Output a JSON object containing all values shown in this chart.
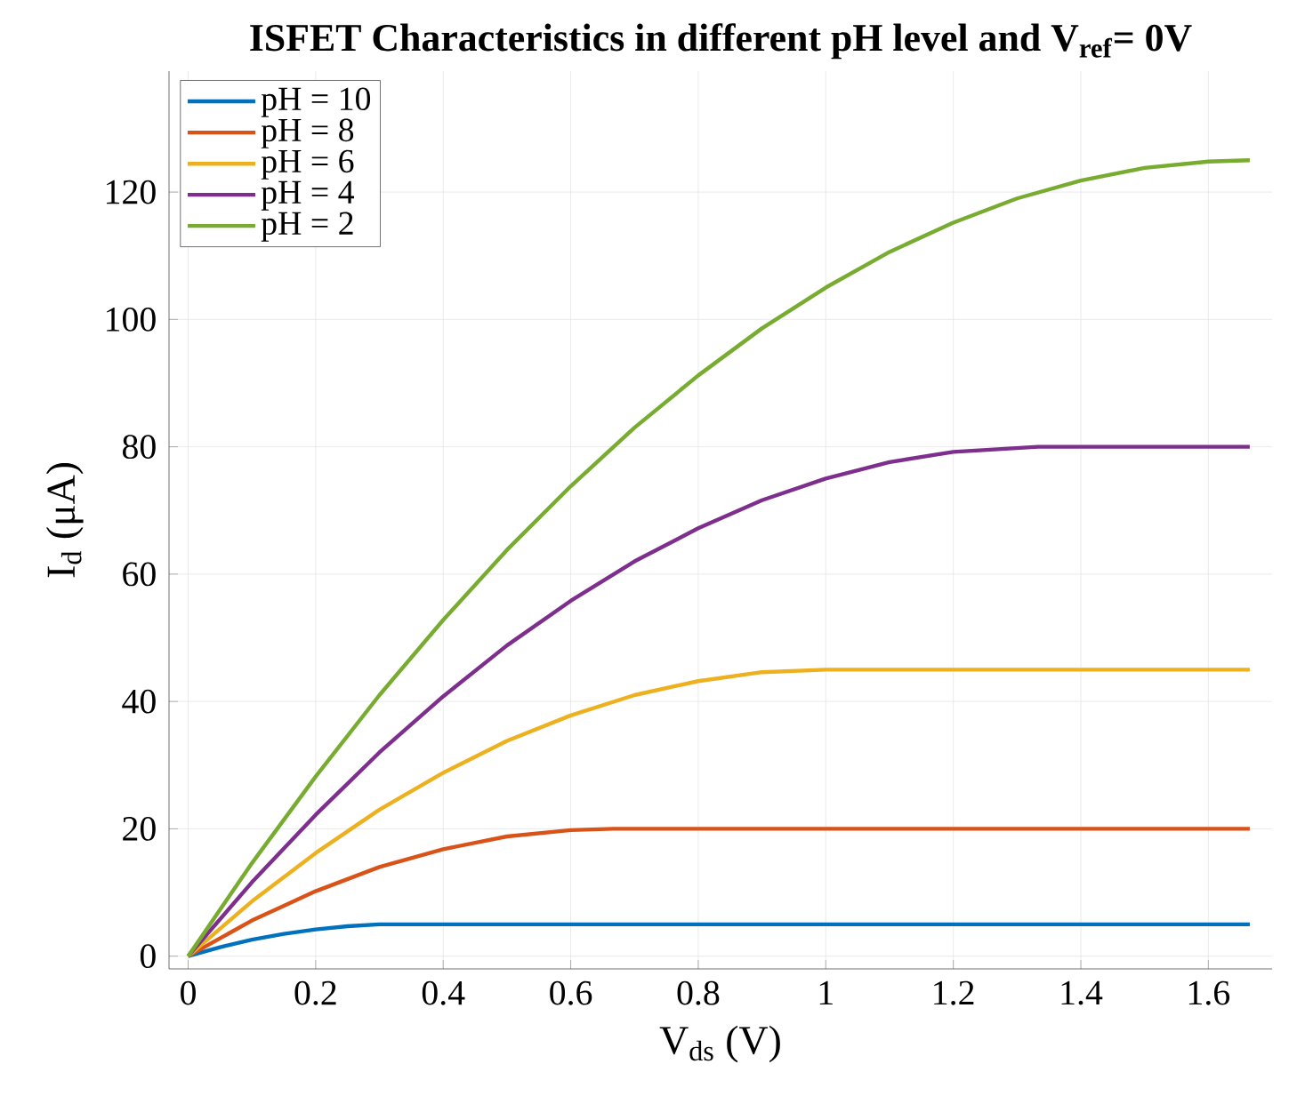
{
  "chart_data": {
    "type": "line",
    "title": "ISFET Characteristics in different pH level and V$_{ref}$= 0V",
    "xlabel": "V$_{ds}$ (V)",
    "ylabel": "I$_{d}$ (μA)",
    "xlim": [
      -0.03,
      1.7
    ],
    "ylim": [
      -2,
      139
    ],
    "xticks": [
      0,
      0.2,
      0.4,
      0.6,
      0.8,
      1,
      1.2,
      1.4,
      1.6
    ],
    "yticks": [
      0,
      20,
      40,
      60,
      80,
      100,
      120
    ],
    "grid": true,
    "legend": "top left",
    "marker": "none",
    "line_style": "solid",
    "series": [
      {
        "name": "pH = 10",
        "color": "#0072bd",
        "x": [
          0,
          0.05,
          0.1,
          0.15,
          0.2,
          0.25,
          0.3,
          0.333,
          1.665
        ],
        "values": [
          0,
          1.4,
          2.6,
          3.5,
          4.2,
          4.7,
          5,
          5,
          5
        ]
      },
      {
        "name": "pH = 8",
        "color": "#d95319",
        "x": [
          0,
          0.1,
          0.2,
          0.3,
          0.4,
          0.5,
          0.6,
          0.667,
          1.665
        ],
        "values": [
          0,
          5.6,
          10.2,
          14,
          16.8,
          18.8,
          19.8,
          20,
          20
        ]
      },
      {
        "name": "pH = 6",
        "color": "#edb120",
        "x": [
          0,
          0.1,
          0.2,
          0.3,
          0.4,
          0.5,
          0.6,
          0.7,
          0.8,
          0.9,
          1,
          1.665
        ],
        "values": [
          0,
          8.6,
          16.2,
          23,
          28.8,
          33.8,
          37.8,
          41,
          43.2,
          44.6,
          45,
          45
        ]
      },
      {
        "name": "pH = 4",
        "color": "#7e2f8e",
        "x": [
          0,
          0.1,
          0.2,
          0.3,
          0.4,
          0.5,
          0.6,
          0.7,
          0.8,
          0.9,
          1,
          1.1,
          1.2,
          1.333,
          1.665
        ],
        "values": [
          0,
          11.6,
          22.2,
          32,
          40.8,
          48.8,
          55.8,
          62,
          67.2,
          71.6,
          75,
          77.6,
          79.2,
          80,
          80
        ]
      },
      {
        "name": "pH = 2",
        "color": "#77ac30",
        "x": [
          0,
          0.1,
          0.2,
          0.3,
          0.4,
          0.5,
          0.6,
          0.7,
          0.8,
          0.9,
          1,
          1.1,
          1.2,
          1.3,
          1.4,
          1.5,
          1.6,
          1.665
        ],
        "values": [
          0,
          14.6,
          28.2,
          41,
          52.8,
          63.8,
          73.8,
          83,
          91.2,
          98.6,
          105,
          110.6,
          115.2,
          119,
          121.8,
          123.8,
          124.8,
          125
        ]
      }
    ]
  }
}
